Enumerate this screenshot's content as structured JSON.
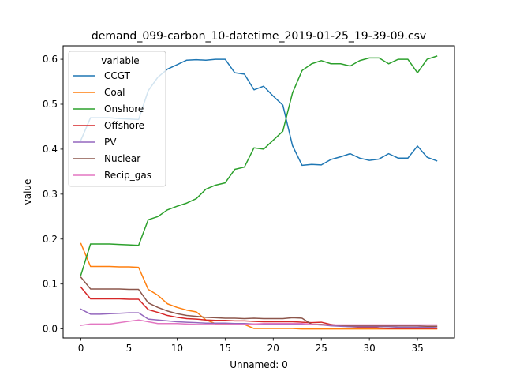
{
  "chart_data": {
    "type": "line",
    "title": "demand_099-carbon_10-datetime_2019-01-25_19-39-09.csv",
    "xlabel": "Unnamed: 0",
    "ylabel": "value",
    "xlim": [
      -1.85,
      38.85
    ],
    "ylim": [
      -0.02,
      0.63
    ],
    "xticks": [
      0,
      5,
      10,
      15,
      20,
      25,
      30,
      35
    ],
    "yticks": [
      0.0,
      0.1,
      0.2,
      0.3,
      0.4,
      0.5,
      0.6
    ],
    "ytick_labels": [
      "0.0",
      "0.1",
      "0.2",
      "0.3",
      "0.4",
      "0.5",
      "0.6"
    ],
    "grid": false,
    "legend": {
      "title": "variable",
      "placement": "upper-left"
    },
    "x": [
      0,
      1,
      2,
      3,
      4,
      5,
      6,
      7,
      8,
      9,
      10,
      11,
      12,
      13,
      14,
      15,
      16,
      17,
      18,
      19,
      20,
      21,
      22,
      23,
      24,
      25,
      26,
      27,
      28,
      29,
      30,
      31,
      32,
      33,
      34,
      35,
      36,
      37
    ],
    "series": [
      {
        "name": "CCGT",
        "color": "#1f77b4",
        "values": [
          0.42,
          0.47,
          0.47,
          0.47,
          0.468,
          0.467,
          0.466,
          0.53,
          0.56,
          0.578,
          0.588,
          0.598,
          0.599,
          0.598,
          0.6,
          0.6,
          0.57,
          0.567,
          0.532,
          0.54,
          0.518,
          0.498,
          0.408,
          0.364,
          0.366,
          0.365,
          0.377,
          0.383,
          0.39,
          0.38,
          0.375,
          0.378,
          0.39,
          0.38,
          0.38,
          0.407,
          0.382,
          0.374
        ]
      },
      {
        "name": "Coal",
        "color": "#ff7f0e",
        "values": [
          0.19,
          0.139,
          0.139,
          0.139,
          0.138,
          0.138,
          0.137,
          0.088,
          0.075,
          0.056,
          0.048,
          0.042,
          0.038,
          0.02,
          0.012,
          0.012,
          0.01,
          0.01,
          0.001,
          0.001,
          0.001,
          0.001,
          0.001,
          0.0,
          0.0,
          0.0,
          0.0,
          0.0,
          0.0,
          0.0,
          0.0,
          0.0,
          0.0,
          0.0,
          0.0,
          0.0,
          0.0,
          0.0
        ]
      },
      {
        "name": "Onshore",
        "color": "#2ca02c",
        "values": [
          0.12,
          0.189,
          0.189,
          0.189,
          0.188,
          0.187,
          0.186,
          0.243,
          0.25,
          0.265,
          0.273,
          0.28,
          0.29,
          0.311,
          0.32,
          0.325,
          0.355,
          0.36,
          0.403,
          0.4,
          0.42,
          0.44,
          0.525,
          0.575,
          0.59,
          0.597,
          0.59,
          0.59,
          0.585,
          0.597,
          0.603,
          0.603,
          0.59,
          0.6,
          0.6,
          0.57,
          0.6,
          0.607
        ]
      },
      {
        "name": "Offshore",
        "color": "#d62728",
        "values": [
          0.093,
          0.067,
          0.067,
          0.067,
          0.067,
          0.066,
          0.066,
          0.043,
          0.037,
          0.03,
          0.026,
          0.023,
          0.022,
          0.02,
          0.019,
          0.019,
          0.018,
          0.018,
          0.017,
          0.016,
          0.016,
          0.016,
          0.016,
          0.015,
          0.014,
          0.015,
          0.01,
          0.007,
          0.005,
          0.004,
          0.004,
          0.002,
          0.001,
          0.001,
          0.001,
          0.001,
          0.001,
          0.001
        ]
      },
      {
        "name": "PV",
        "color": "#9467bd",
        "values": [
          0.044,
          0.033,
          0.033,
          0.034,
          0.035,
          0.036,
          0.036,
          0.022,
          0.02,
          0.018,
          0.016,
          0.015,
          0.014,
          0.013,
          0.013,
          0.013,
          0.012,
          0.012,
          0.011,
          0.011,
          0.011,
          0.011,
          0.011,
          0.011,
          0.01,
          0.009,
          0.007,
          0.006,
          0.005,
          0.005,
          0.005,
          0.005,
          0.005,
          0.004,
          0.004,
          0.004,
          0.004,
          0.003
        ]
      },
      {
        "name": "Nuclear",
        "color": "#8c564b",
        "values": [
          0.115,
          0.089,
          0.089,
          0.089,
          0.089,
          0.088,
          0.088,
          0.058,
          0.048,
          0.04,
          0.034,
          0.03,
          0.028,
          0.026,
          0.025,
          0.024,
          0.024,
          0.023,
          0.024,
          0.023,
          0.023,
          0.023,
          0.025,
          0.024,
          0.01,
          0.01,
          0.009,
          0.008,
          0.007,
          0.007,
          0.007,
          0.007,
          0.007,
          0.007,
          0.007,
          0.007,
          0.006,
          0.006
        ]
      },
      {
        "name": "Recip_gas",
        "color": "#e377c2",
        "values": [
          0.008,
          0.011,
          0.011,
          0.011,
          0.014,
          0.017,
          0.02,
          0.016,
          0.012,
          0.012,
          0.012,
          0.011,
          0.01,
          0.01,
          0.01,
          0.01,
          0.01,
          0.01,
          0.011,
          0.012,
          0.012,
          0.012,
          0.012,
          0.012,
          0.01,
          0.009,
          0.009,
          0.009,
          0.009,
          0.009,
          0.009,
          0.009,
          0.009,
          0.009,
          0.009,
          0.009,
          0.009,
          0.009
        ]
      }
    ]
  }
}
